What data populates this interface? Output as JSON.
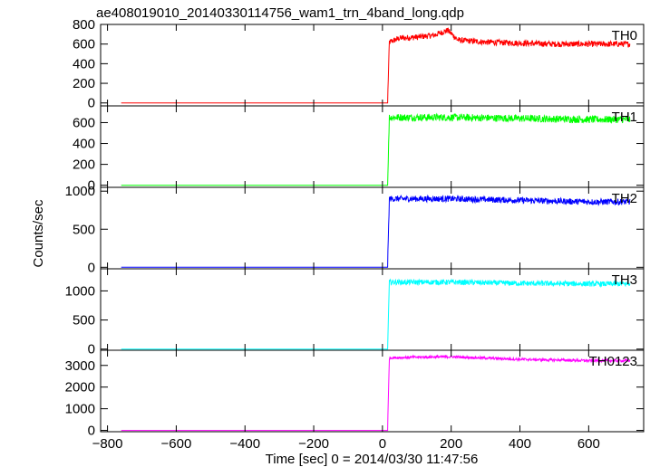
{
  "chart_data": {
    "type": "line",
    "title": "ae408019010_20140330114756_wam1_trn_4band_long.qdp",
    "xlabel": "Time [sec] 0 = 2014/03/30 11:47:56",
    "ylabel": "Counts/sec",
    "xlim": [
      -820,
      760
    ],
    "x_ticks": [
      -800,
      -600,
      -400,
      -200,
      0,
      200,
      400,
      600
    ],
    "x_tick_labels": [
      "−800",
      "−600",
      "−400",
      "−200",
      "0",
      "200",
      "400",
      "600"
    ],
    "panels": [
      {
        "series_name": "TH0",
        "color": "#ff0000",
        "ylim": [
          -30,
          800
        ],
        "y_ticks": [
          0,
          200,
          400,
          600,
          800
        ],
        "y_tick_labels": [
          "0",
          "200",
          "400",
          "600",
          "800"
        ],
        "x": [
          -760,
          15,
          20,
          50,
          100,
          150,
          190,
          220,
          300,
          400,
          500,
          600,
          720
        ],
        "y": [
          0,
          0,
          620,
          660,
          670,
          690,
          740,
          640,
          620,
          610,
          600,
          600,
          600
        ],
        "noise": 30
      },
      {
        "series_name": "TH1",
        "color": "#00ff00",
        "ylim": [
          -20,
          760
        ],
        "y_ticks": [
          0,
          200,
          400,
          600
        ],
        "y_tick_labels": [
          "0",
          "200",
          "400",
          "600"
        ],
        "x": [
          -760,
          15,
          20,
          200,
          400,
          600,
          720
        ],
        "y": [
          0,
          0,
          650,
          650,
          640,
          630,
          630
        ],
        "noise": 35
      },
      {
        "series_name": "TH2",
        "color": "#0000ff",
        "ylim": [
          -20,
          1050
        ],
        "y_ticks": [
          0,
          500,
          1000
        ],
        "y_tick_labels": [
          "0",
          "500",
          "1000"
        ],
        "x": [
          -760,
          15,
          20,
          200,
          400,
          600,
          720
        ],
        "y": [
          0,
          0,
          900,
          900,
          880,
          860,
          860
        ],
        "noise": 40
      },
      {
        "series_name": "TH3",
        "color": "#00ffff",
        "ylim": [
          -20,
          1380
        ],
        "y_ticks": [
          0,
          500,
          1000
        ],
        "y_tick_labels": [
          "0",
          "500",
          "1000"
        ],
        "x": [
          -760,
          15,
          20,
          200,
          400,
          600,
          720
        ],
        "y": [
          0,
          0,
          1150,
          1150,
          1130,
          1120,
          1120
        ],
        "noise": 45
      },
      {
        "series_name": "TH0123",
        "color": "#ff00ff",
        "ylim": [
          -60,
          3700
        ],
        "y_ticks": [
          0,
          1000,
          2000,
          3000
        ],
        "y_tick_labels": [
          "0",
          "1000",
          "2000",
          "3000"
        ],
        "x": [
          -760,
          15,
          20,
          100,
          200,
          400,
          600,
          720
        ],
        "y": [
          0,
          0,
          3350,
          3380,
          3400,
          3280,
          3220,
          3220
        ],
        "noise": 60
      }
    ]
  }
}
